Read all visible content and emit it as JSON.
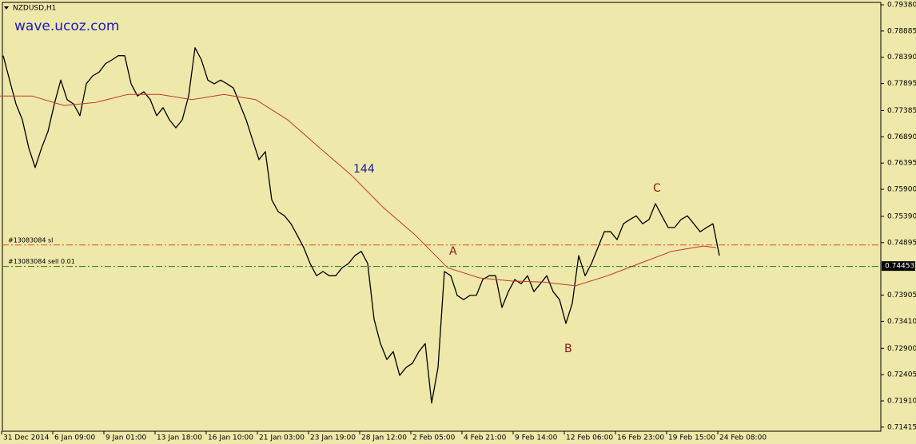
{
  "chart_data": {
    "type": "line",
    "title": "NZDUSD,H1",
    "watermark": "wave.ucoz.com",
    "background": "#eee8aa",
    "grid": false,
    "xlim": [
      0,
      275.5
    ],
    "ylim": [
      0.71338,
      0.7947
    ],
    "yticks": [
      {
        "value": 0.7938,
        "label": "0.79380"
      },
      {
        "value": 0.78885,
        "label": "0.78885"
      },
      {
        "value": 0.7839,
        "label": "0.78390"
      },
      {
        "value": 0.77895,
        "label": "0.77895"
      },
      {
        "value": 0.77385,
        "label": "0.77385"
      },
      {
        "value": 0.7689,
        "label": "0.76890"
      },
      {
        "value": 0.76395,
        "label": "0.76395"
      },
      {
        "value": 0.759,
        "label": "0.75900"
      },
      {
        "value": 0.7539,
        "label": "0.75390"
      },
      {
        "value": 0.74895,
        "label": "0.74895"
      },
      {
        "value": 0.73905,
        "label": "0.73905"
      },
      {
        "value": 0.7341,
        "label": "0.73410"
      },
      {
        "value": 0.729,
        "label": "0.72900"
      },
      {
        "value": 0.72405,
        "label": "0.72405"
      },
      {
        "value": 0.7191,
        "label": "0.71910"
      },
      {
        "value": 0.71415,
        "label": "0.71415"
      }
    ],
    "xticks": [
      {
        "value": 0.5,
        "label": "31 Dec 2014"
      },
      {
        "value": 16.5,
        "label": "6 Jan 09:00"
      },
      {
        "value": 32.5,
        "label": "9 Jan 01:00"
      },
      {
        "value": 48.5,
        "label": "13 Jan 18:00"
      },
      {
        "value": 64.5,
        "label": "16 Jan 10:00"
      },
      {
        "value": 80.5,
        "label": "21 Jan 03:00"
      },
      {
        "value": 96.5,
        "label": "23 Jan 19:00"
      },
      {
        "value": 112.5,
        "label": "28 Jan 12:00"
      },
      {
        "value": 128.5,
        "label": "2 Feb 05:00"
      },
      {
        "value": 144.5,
        "label": "4 Feb 21:00"
      },
      {
        "value": 160.5,
        "label": "9 Feb 14:00"
      },
      {
        "value": 176.5,
        "label": "12 Feb 06:00"
      },
      {
        "value": 192.5,
        "label": "16 Feb 23:00"
      },
      {
        "value": 208.5,
        "label": "19 Feb 15:00"
      },
      {
        "value": 224.5,
        "label": "24 Feb 08:00"
      }
    ],
    "series": [
      {
        "color": "#000000",
        "x": [
          1,
          3,
          5,
          7,
          9,
          11,
          13,
          15,
          17,
          19,
          21,
          23,
          25,
          27,
          29,
          31,
          33,
          35,
          37,
          39,
          41,
          43,
          45,
          47,
          49,
          51,
          53,
          55,
          57,
          59,
          61,
          63,
          65,
          67,
          69,
          71,
          73,
          75,
          77,
          79,
          81,
          83,
          85,
          87,
          89,
          91,
          93,
          95,
          97,
          99,
          101,
          103,
          105,
          107,
          109,
          111,
          113,
          115,
          117,
          119,
          121,
          123,
          125,
          127,
          129,
          131,
          133,
          135,
          137,
          139,
          141,
          143,
          145,
          147,
          149,
          151,
          153,
          155,
          157,
          159,
          161,
          163,
          165,
          167,
          169,
          171,
          173,
          175,
          177,
          179,
          181,
          183,
          185,
          187,
          189,
          191,
          193,
          195,
          197,
          199,
          201,
          203,
          205,
          207,
          209,
          211,
          213,
          215,
          217,
          219,
          221,
          223,
          225
        ],
        "values": [
          0.7842,
          0.7796,
          0.7751,
          0.7721,
          0.7668,
          0.7631,
          0.7668,
          0.7699,
          0.7751,
          0.7796,
          0.7759,
          0.7751,
          0.7729,
          0.7789,
          0.7804,
          0.7811,
          0.7827,
          0.7834,
          0.7842,
          0.7842,
          0.7789,
          0.7766,
          0.7774,
          0.7759,
          0.7729,
          0.7744,
          0.7721,
          0.7706,
          0.7721,
          0.7766,
          0.7857,
          0.7834,
          0.7796,
          0.7789,
          0.7796,
          0.7789,
          0.7781,
          0.7751,
          0.7721,
          0.7683,
          0.7646,
          0.7661,
          0.757,
          0.7548,
          0.754,
          0.7525,
          0.7503,
          0.748,
          0.745,
          0.7427,
          0.7435,
          0.7427,
          0.7427,
          0.7442,
          0.745,
          0.7465,
          0.7473,
          0.745,
          0.7345,
          0.7299,
          0.7269,
          0.7284,
          0.7239,
          0.7254,
          0.7262,
          0.7284,
          0.7299,
          0.7187,
          0.7254,
          0.7435,
          0.7427,
          0.739,
          0.7382,
          0.739,
          0.739,
          0.742,
          0.7427,
          0.7427,
          0.7367,
          0.7397,
          0.742,
          0.7412,
          0.7427,
          0.7397,
          0.7412,
          0.7427,
          0.7397,
          0.7382,
          0.7337,
          0.7375,
          0.7465,
          0.7427,
          0.745,
          0.748,
          0.751,
          0.751,
          0.7495,
          0.7525,
          0.7533,
          0.754,
          0.7525,
          0.7533,
          0.7563,
          0.754,
          0.7518,
          0.7518,
          0.7533,
          0.754,
          0.7525,
          0.751,
          0.7518,
          0.7525,
          0.7465
        ]
      },
      {
        "color": "#c0392b",
        "x": [
          0,
          10,
          20,
          30,
          40,
          50,
          60,
          70,
          80,
          90,
          100,
          110,
          120,
          130,
          140,
          150,
          160,
          170,
          180,
          190,
          200,
          210,
          220,
          224
        ],
        "values": [
          0.7766,
          0.7766,
          0.7748,
          0.7754,
          0.7769,
          0.7769,
          0.7759,
          0.7769,
          0.7759,
          0.7721,
          0.7668,
          0.7616,
          0.7555,
          0.7503,
          0.7442,
          0.7423,
          0.7417,
          0.7415,
          0.7408,
          0.7427,
          0.745,
          0.7473,
          0.7483,
          0.748
        ]
      }
    ],
    "levels": [
      {
        "label": "#13083084 sl",
        "value": 0.7485,
        "color": "#e0501e"
      },
      {
        "label": "#13083084 sell 0.01",
        "value": 0.74445,
        "color": "#1a7a1a"
      }
    ],
    "last_price": 0.74453,
    "annotations": [
      {
        "text": "144",
        "color": "#1a1a9a"
      },
      {
        "text": "A",
        "color": "#8b1a1a"
      },
      {
        "text": "B",
        "color": "#8b1a1a"
      },
      {
        "text": "C",
        "color": "#8b1a1a"
      }
    ]
  }
}
